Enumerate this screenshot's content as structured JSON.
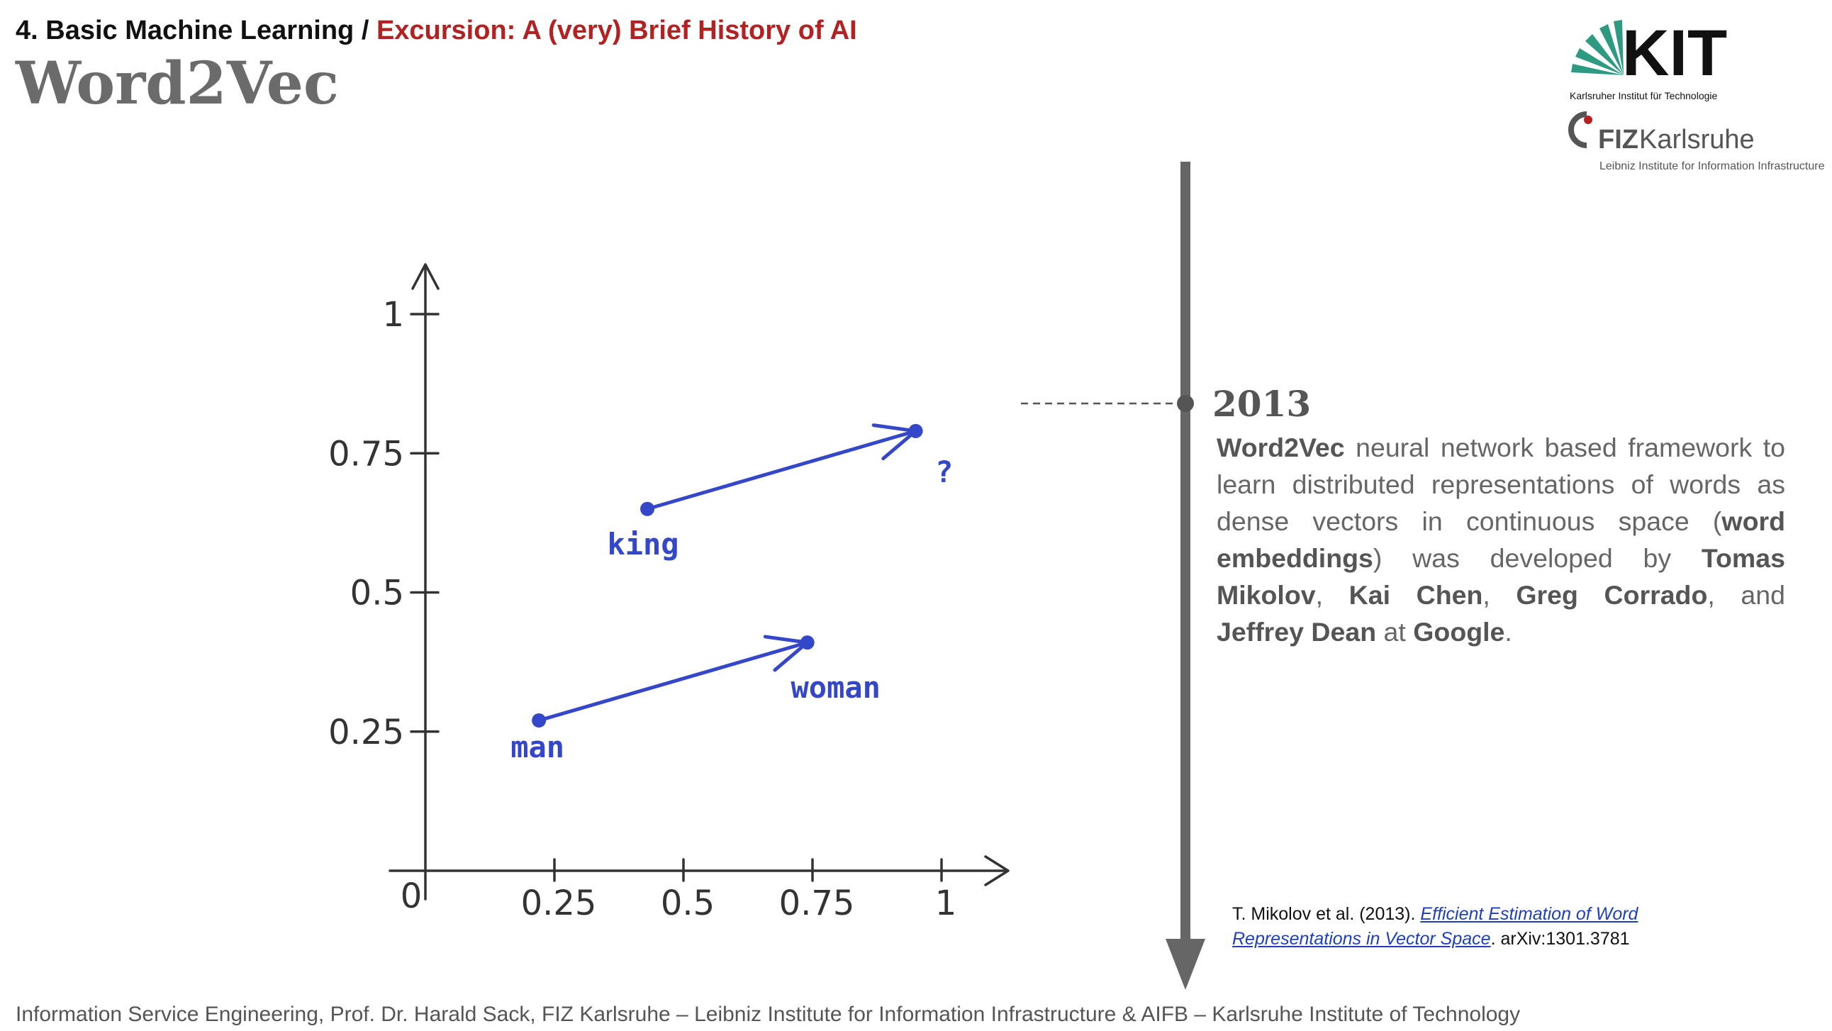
{
  "header": {
    "section": "4. Basic Machine Learning / ",
    "subsection": "Excursion: A (very) Brief History of AI",
    "title": "Word2Vec"
  },
  "logos": {
    "kit_letters": "KIT",
    "kit_subtitle": "Karlsruher Institut für Technologie",
    "fiz_name_bold": "FIZ",
    "fiz_name": "Karlsruhe",
    "fiz_subtitle": "Leibniz Institute for Information Infrastructure"
  },
  "timeline": {
    "year": "2013",
    "description": {
      "p1": "Word2Vec",
      "p2": " neural network based framework to learn distributed representations of words as dense vectors in continuous space (",
      "p3": "word embeddings",
      "p4": ") was developed by ",
      "p5": "Tomas Mikolov",
      "p6": ", ",
      "p7": "Kai Chen",
      "p8": ", ",
      "p9": "Greg Corrado",
      "p10": ", and ",
      "p11": "Jeffrey Dean",
      "p12": " at ",
      "p13": "Google",
      "p14": "."
    },
    "reference": {
      "prefix": "T. Mikolov et al. (2013). ",
      "link": "Efficient Estimation of Word Representations in Vector Space",
      "suffix": ". arXiv:1301.3781"
    }
  },
  "footer": "Information Service Engineering, Prof. Dr. Harald Sack, FIZ Karlsruhe – Leibniz Institute for Information Infrastructure & AIFB – Karlsruhe Institute of Technology",
  "colors": {
    "accent_red": "#b22222",
    "vector_blue": "#3447c8",
    "timeline_gray": "#666666",
    "kit_green": "#2f9a82"
  },
  "chart_data": {
    "type": "scatter",
    "xlim": [
      0,
      1
    ],
    "ylim": [
      0,
      1
    ],
    "x_ticks": [
      0.25,
      0.5,
      0.75,
      1
    ],
    "x_tick_labels": [
      "0.25",
      "0.5",
      "0.75",
      "1"
    ],
    "y_ticks": [
      0.25,
      0.5,
      0.75,
      1
    ],
    "y_tick_labels": [
      "0.25",
      "0.5",
      "0.75",
      "1"
    ],
    "origin_label": "0",
    "points": [
      {
        "label": "man",
        "x": 0.22,
        "y": 0.27
      },
      {
        "label": "woman",
        "x": 0.74,
        "y": 0.41
      },
      {
        "label": "king",
        "x": 0.43,
        "y": 0.65
      },
      {
        "label": "?",
        "x": 0.95,
        "y": 0.79
      }
    ],
    "vectors": [
      {
        "from": "man",
        "to": "woman"
      },
      {
        "from": "king",
        "to": "?"
      }
    ],
    "grid": false
  }
}
